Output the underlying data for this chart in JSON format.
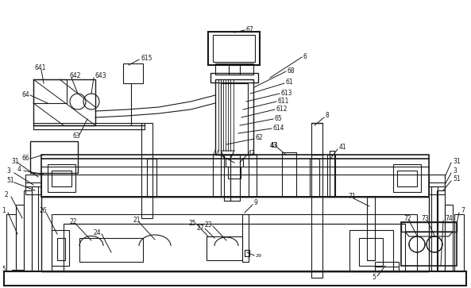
{
  "bg_color": "#ffffff",
  "line_color": "#1a1a1a",
  "fig_width": 5.93,
  "fig_height": 3.63
}
